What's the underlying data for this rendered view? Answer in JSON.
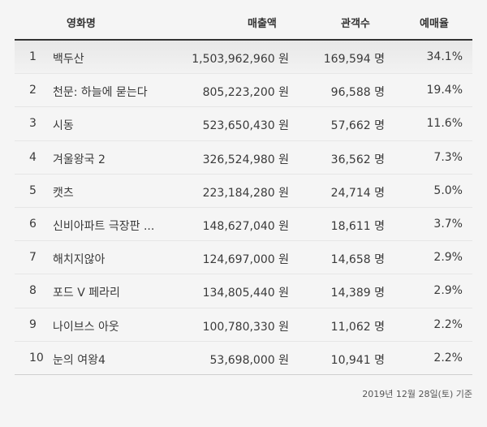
{
  "headers": {
    "title": "영화명",
    "sales": "매출액",
    "audience": "관객수",
    "rate": "예매율"
  },
  "rows": [
    {
      "rank": "1",
      "title": "백두산",
      "sales": "1,503,962,960 원",
      "audience": "169,594 명",
      "rate": "34.1%"
    },
    {
      "rank": "2",
      "title": "천문: 하늘에 묻는다",
      "sales": "805,223,200 원",
      "audience": "96,588 명",
      "rate": "19.4%"
    },
    {
      "rank": "3",
      "title": "시동",
      "sales": "523,650,430 원",
      "audience": "57,662 명",
      "rate": "11.6%"
    },
    {
      "rank": "4",
      "title": "겨울왕국 2",
      "sales": "326,524,980 원",
      "audience": "36,562 명",
      "rate": "7.3%"
    },
    {
      "rank": "5",
      "title": "캣츠",
      "sales": "223,184,280 원",
      "audience": "24,714 명",
      "rate": "5.0%"
    },
    {
      "rank": "6",
      "title": "신비아파트 극장판 ...",
      "sales": "148,627,040 원",
      "audience": "18,611 명",
      "rate": "3.7%"
    },
    {
      "rank": "7",
      "title": "해치지않아",
      "sales": "124,697,000 원",
      "audience": "14,658 명",
      "rate": "2.9%"
    },
    {
      "rank": "8",
      "title": "포드 V 페라리",
      "sales": "134,805,440 원",
      "audience": "14,389 명",
      "rate": "2.9%"
    },
    {
      "rank": "9",
      "title": "나이브스 아웃",
      "sales": "100,780,330 원",
      "audience": "11,062 명",
      "rate": "2.2%"
    },
    {
      "rank": "10",
      "title": "눈의 여왕4",
      "sales": "53,698,000 원",
      "audience": "10,941 명",
      "rate": "2.2%"
    }
  ],
  "footnote": "2019년 12월 28일(토) 기준"
}
